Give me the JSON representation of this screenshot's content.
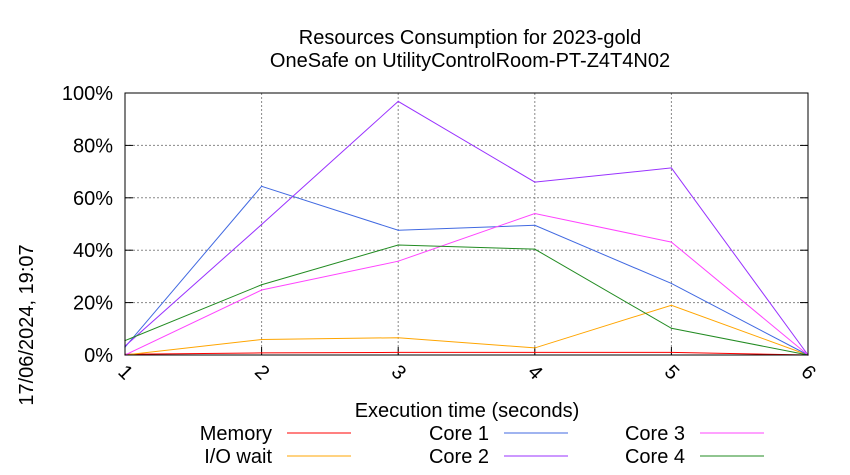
{
  "chart_data": {
    "type": "line",
    "title": "Resources Consumption for 2023-gold",
    "subtitle": "OneSafe on UtilityControlRoom-PT-Z4T4N02",
    "xlabel": "Execution time (seconds)",
    "ylabel": "",
    "side_label": "17/06/2024, 19:07",
    "x": [
      1,
      2,
      3,
      4,
      5,
      6
    ],
    "xlim": [
      1,
      6
    ],
    "ylim": [
      0,
      100
    ],
    "x_ticks": [
      "1",
      "2",
      "3",
      "4",
      "5",
      "6"
    ],
    "y_ticks": [
      "0%",
      "20%",
      "40%",
      "60%",
      "80%",
      "100%"
    ],
    "y_tick_values": [
      0,
      20,
      40,
      60,
      80,
      100
    ],
    "grid": true,
    "legend_position": "bottom",
    "series": [
      {
        "name": "Memory",
        "color": "#ff0000",
        "values": [
          0.3,
          0.8,
          1.0,
          1.0,
          1.0,
          0
        ]
      },
      {
        "name": "I/O wait",
        "color": "#ffa500",
        "values": [
          0,
          5.9,
          6.6,
          2.7,
          19.0,
          0
        ]
      },
      {
        "name": "Core 1",
        "color": "#4169e1",
        "values": [
          3.0,
          64.4,
          47.6,
          49.5,
          27.3,
          0
        ]
      },
      {
        "name": "Core 2",
        "color": "#9932ff",
        "values": [
          3.4,
          49.8,
          96.8,
          66.0,
          71.4,
          0
        ]
      },
      {
        "name": "Core 3",
        "color": "#ff44ff",
        "values": [
          0,
          24.8,
          35.8,
          54.0,
          43.1,
          0
        ]
      },
      {
        "name": "Core 4",
        "color": "#228b22",
        "values": [
          5.5,
          26.8,
          42.0,
          40.4,
          10.2,
          0
        ]
      }
    ]
  }
}
